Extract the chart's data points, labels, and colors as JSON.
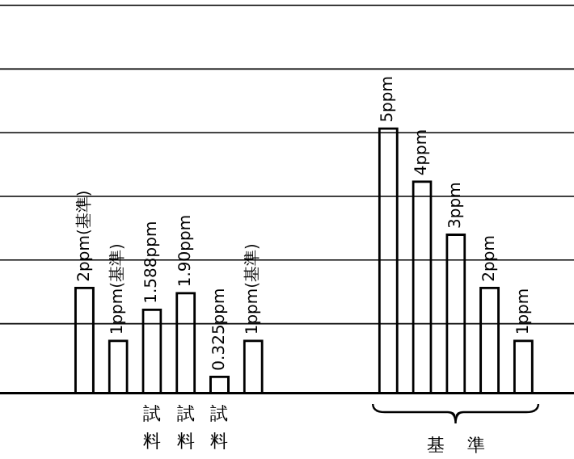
{
  "chart_data": {
    "type": "bar",
    "ylim": [
      0,
      7.4
    ],
    "categories": [
      null,
      null,
      null,
      null,
      "試料",
      "試料",
      "試料",
      null,
      null,
      null,
      null,
      null,
      null,
      null,
      null,
      null,
      null
    ],
    "series": [
      {
        "color": "#000000",
        "values": [
          null,
          null,
          2,
          1,
          1.588,
          1.9,
          0.325,
          1,
          null,
          null,
          null,
          5,
          4,
          3,
          2,
          1,
          null
        ],
        "value_labels": [
          null,
          null,
          "2ppm(基準)",
          "1ppm(基準)",
          "1.588ppm",
          "1.90ppm",
          "0.325ppm",
          "1ppm(基準)",
          null,
          null,
          null,
          "5ppm",
          "4ppm",
          "3ppm",
          "2ppm",
          "1ppm",
          null
        ]
      }
    ],
    "ref_lines": [
      {
        "axis": "y",
        "value": 1.3
      },
      {
        "axis": "y",
        "value": 2.5
      },
      {
        "axis": "y",
        "value": 3.7
      },
      {
        "axis": "y",
        "value": 4.9
      },
      {
        "axis": "y",
        "value": 6.1
      },
      {
        "axis": "y",
        "value": 7.3
      }
    ],
    "annotations": [
      "基準"
    ]
  }
}
